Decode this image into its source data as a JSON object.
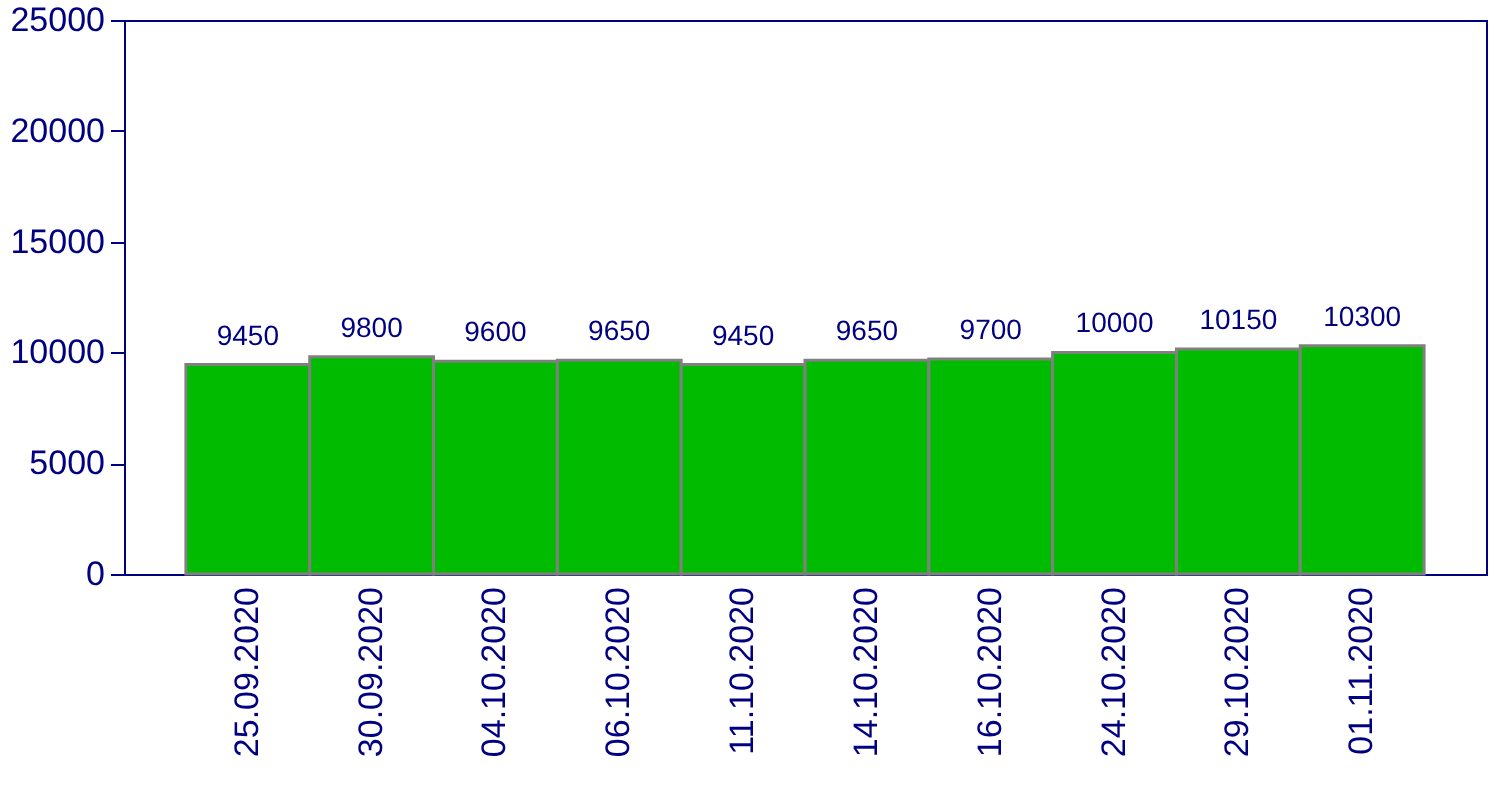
{
  "chart_data": {
    "type": "bar",
    "categories": [
      "25.09.2020",
      "30.09.2020",
      "04.10.2020",
      "06.10.2020",
      "11.10.2020",
      "14.10.2020",
      "16.10.2020",
      "24.10.2020",
      "29.10.2020",
      "01.11.2020"
    ],
    "values": [
      9450,
      9800,
      9600,
      9650,
      9450,
      9650,
      9700,
      10000,
      10150,
      10300
    ],
    "color": "#00bb00",
    "ylim": [
      0,
      25000
    ],
    "yticks": [
      0,
      5000,
      10000,
      15000,
      20000,
      25000
    ],
    "grid": false,
    "data_labels": true
  }
}
